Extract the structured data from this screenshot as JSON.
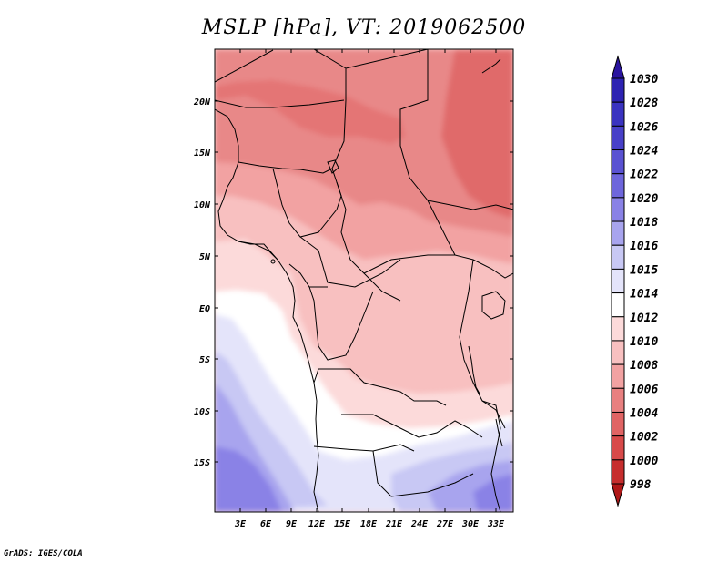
{
  "map": {
    "title": "MSLP [hPa], VT: 2019062500",
    "footer": "GrADS: IGES/COLA",
    "lat_labels": [
      "20N",
      "15N",
      "10N",
      "5N",
      "EQ",
      "5S",
      "10S",
      "15S"
    ],
    "lon_labels": [
      "3E",
      "6E",
      "9E",
      "12E",
      "15E",
      "18E",
      "21E",
      "24E",
      "27E",
      "30E",
      "33E"
    ]
  },
  "colorbar": {
    "levels": [
      "1030",
      "1028",
      "1026",
      "1024",
      "1022",
      "1020",
      "1018",
      "1016",
      "1015",
      "1014",
      "1012",
      "1010",
      "1008",
      "1006",
      "1004",
      "1002",
      "1000",
      "998"
    ],
    "colors": [
      "#2a14a0",
      "#2e23b2",
      "#3a33c0",
      "#4840c8",
      "#5a52d2",
      "#6e66dc",
      "#8a82e6",
      "#a8a4ee",
      "#c8c8f4",
      "#e4e4fa",
      "#ffffff",
      "#fcdada",
      "#f8c0c0",
      "#f2a2a2",
      "#e88080",
      "#e06464",
      "#d84a4a",
      "#c62e2e",
      "#b01818"
    ]
  }
}
